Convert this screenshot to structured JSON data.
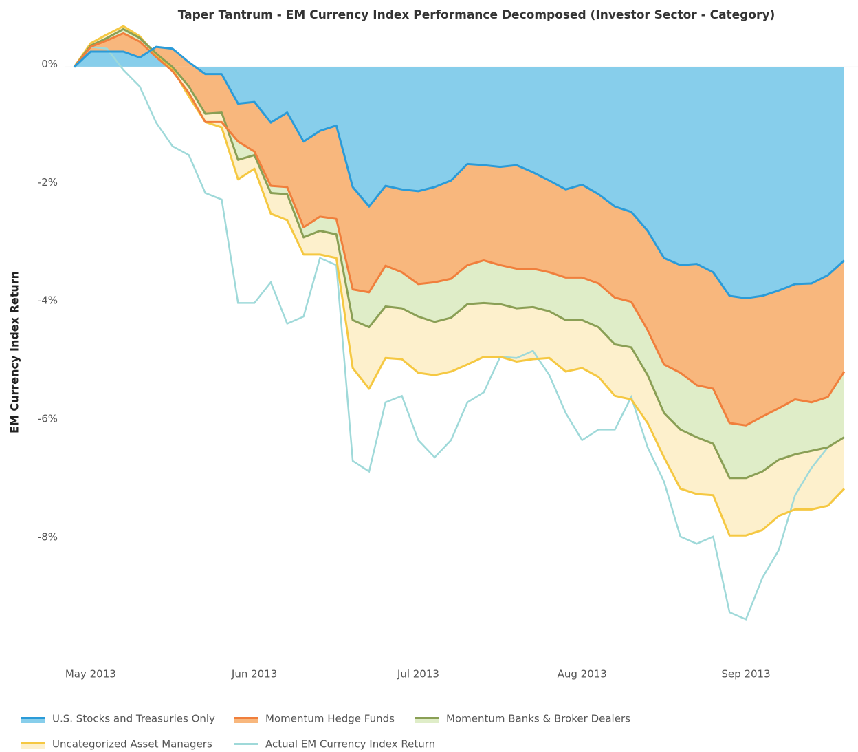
{
  "chart_data": {
    "type": "area",
    "title": "Taper Tantrum - EM Currency Index Performance Decomposed (Investor Sector - Category)",
    "y_label": "EM Currency Index Return",
    "categories": [
      null,
      "May 2013",
      null,
      null,
      null,
      null,
      null,
      null,
      null,
      null,
      null,
      "Jun 2013",
      null,
      null,
      null,
      null,
      null,
      null,
      null,
      null,
      null,
      "Jul 2013",
      null,
      null,
      null,
      null,
      null,
      null,
      null,
      null,
      null,
      "Aug 2013",
      null,
      null,
      null,
      null,
      null,
      null,
      null,
      null,
      null,
      "Sep 2013",
      null,
      null,
      null,
      null,
      null,
      null
    ],
    "ylim": [
      -10,
      0.9
    ],
    "yticks": [
      {
        "value": 0,
        "label": "0%"
      },
      {
        "value": -2,
        "label": "-2%"
      },
      {
        "value": -4,
        "label": "-4%"
      },
      {
        "value": -6,
        "label": "-6%"
      },
      {
        "value": -8,
        "label": "-8%"
      }
    ],
    "zero_line": true,
    "series": [
      {
        "name": "U.S. Stocks and Treasuries Only",
        "color": "#2b9bd8",
        "fill": "#87ceeb",
        "values": [
          0,
          0.26,
          0.26,
          0.26,
          0.16,
          0.34,
          0.31,
          0.08,
          -0.12,
          -0.12,
          -0.62,
          -0.59,
          -0.94,
          -0.77,
          -1.26,
          -1.08,
          -0.99,
          -2.03,
          -2.36,
          -2.01,
          -2.07,
          -2.1,
          -2.03,
          -1.92,
          -1.64,
          -1.66,
          -1.69,
          -1.66,
          -1.78,
          -1.92,
          -2.07,
          -1.99,
          -2.15,
          -2.36,
          -2.45,
          -2.77,
          -3.23,
          -3.35,
          -3.33,
          -3.47,
          -3.87,
          -3.91,
          -3.87,
          -3.78,
          -3.67,
          -3.66,
          -3.52,
          -3.27
        ]
      },
      {
        "name": "Momentum Hedge Funds",
        "color": "#f07f3c",
        "fill": "#f8b77d",
        "values": [
          0,
          0.08,
          0.19,
          0.31,
          0.27,
          -0.17,
          -0.38,
          -0.52,
          -0.81,
          -0.81,
          -0.64,
          -0.84,
          -1.07,
          -1.26,
          -1.45,
          -1.45,
          -1.58,
          -1.73,
          -1.45,
          -1.35,
          -1.4,
          -1.57,
          -1.61,
          -1.66,
          -1.71,
          -1.61,
          -1.66,
          -1.75,
          -1.63,
          -1.55,
          -1.49,
          -1.57,
          -1.51,
          -1.54,
          -1.52,
          -1.68,
          -1.8,
          -1.82,
          -2.05,
          -1.97,
          -2.15,
          -2.15,
          -2.04,
          -1.99,
          -1.95,
          -2.01,
          -2.06,
          -1.88
        ]
      },
      {
        "name": "Momentum Banks & Broker Dealers",
        "color": "#8a9f55",
        "fill": "#dfedc8",
        "values": [
          0,
          0.02,
          0.04,
          0.07,
          0.06,
          0.06,
          0.07,
          0.11,
          0.14,
          0.16,
          -0.31,
          -0.06,
          -0.12,
          -0.12,
          -0.17,
          -0.24,
          -0.26,
          -0.52,
          -0.59,
          -0.69,
          -0.61,
          -0.55,
          -0.67,
          -0.66,
          -0.66,
          -0.72,
          -0.66,
          -0.67,
          -0.65,
          -0.66,
          -0.72,
          -0.72,
          -0.74,
          -0.79,
          -0.77,
          -0.76,
          -0.82,
          -0.96,
          -0.88,
          -0.93,
          -0.93,
          -0.89,
          -0.93,
          -0.87,
          -0.93,
          -0.82,
          -0.85,
          -1.11
        ]
      },
      {
        "name": "Uncategorized Asset Managers",
        "color": "#f5c842",
        "fill": "#fdf0cc",
        "values": [
          0,
          0.04,
          0.06,
          0.05,
          0.03,
          -0.03,
          -0.03,
          -0.17,
          -0.14,
          -0.25,
          -0.33,
          -0.23,
          -0.35,
          -0.44,
          -0.29,
          -0.4,
          -0.4,
          -0.81,
          -1.04,
          -0.87,
          -0.86,
          -0.95,
          -0.9,
          -0.91,
          -1.02,
          -0.91,
          -0.89,
          -0.9,
          -0.88,
          -0.79,
          -0.87,
          -0.81,
          -0.84,
          -0.87,
          -0.88,
          -0.81,
          -0.75,
          -1,
          -0.96,
          -0.87,
          -0.97,
          -0.97,
          -0.99,
          -0.95,
          -0.93,
          -0.99,
          -0.99,
          -0.87
        ]
      },
      {
        "name": "Actual EM Currency Index Return",
        "color": "#9fd9d9",
        "fill": null,
        "values": [
          0,
          0.34,
          0.31,
          -0.05,
          -0.33,
          -0.94,
          -1.34,
          -1.49,
          -2.13,
          -2.24,
          -3.99,
          -3.99,
          -3.64,
          -4.34,
          -4.22,
          -3.23,
          -3.35,
          -6.66,
          -6.84,
          -5.67,
          -5.56,
          -6.31,
          -6.6,
          -6.31,
          -5.67,
          -5.5,
          -4.9,
          -4.92,
          -4.8,
          -5.21,
          -5.85,
          -6.31,
          -6.13,
          -6.13,
          -5.58,
          -6.43,
          -7.01,
          -7.94,
          -8.06,
          -7.94,
          -9.22,
          -9.34,
          -8.64,
          -8.17,
          -7.24,
          -6.78,
          -6.43,
          -6.26
        ]
      }
    ]
  }
}
